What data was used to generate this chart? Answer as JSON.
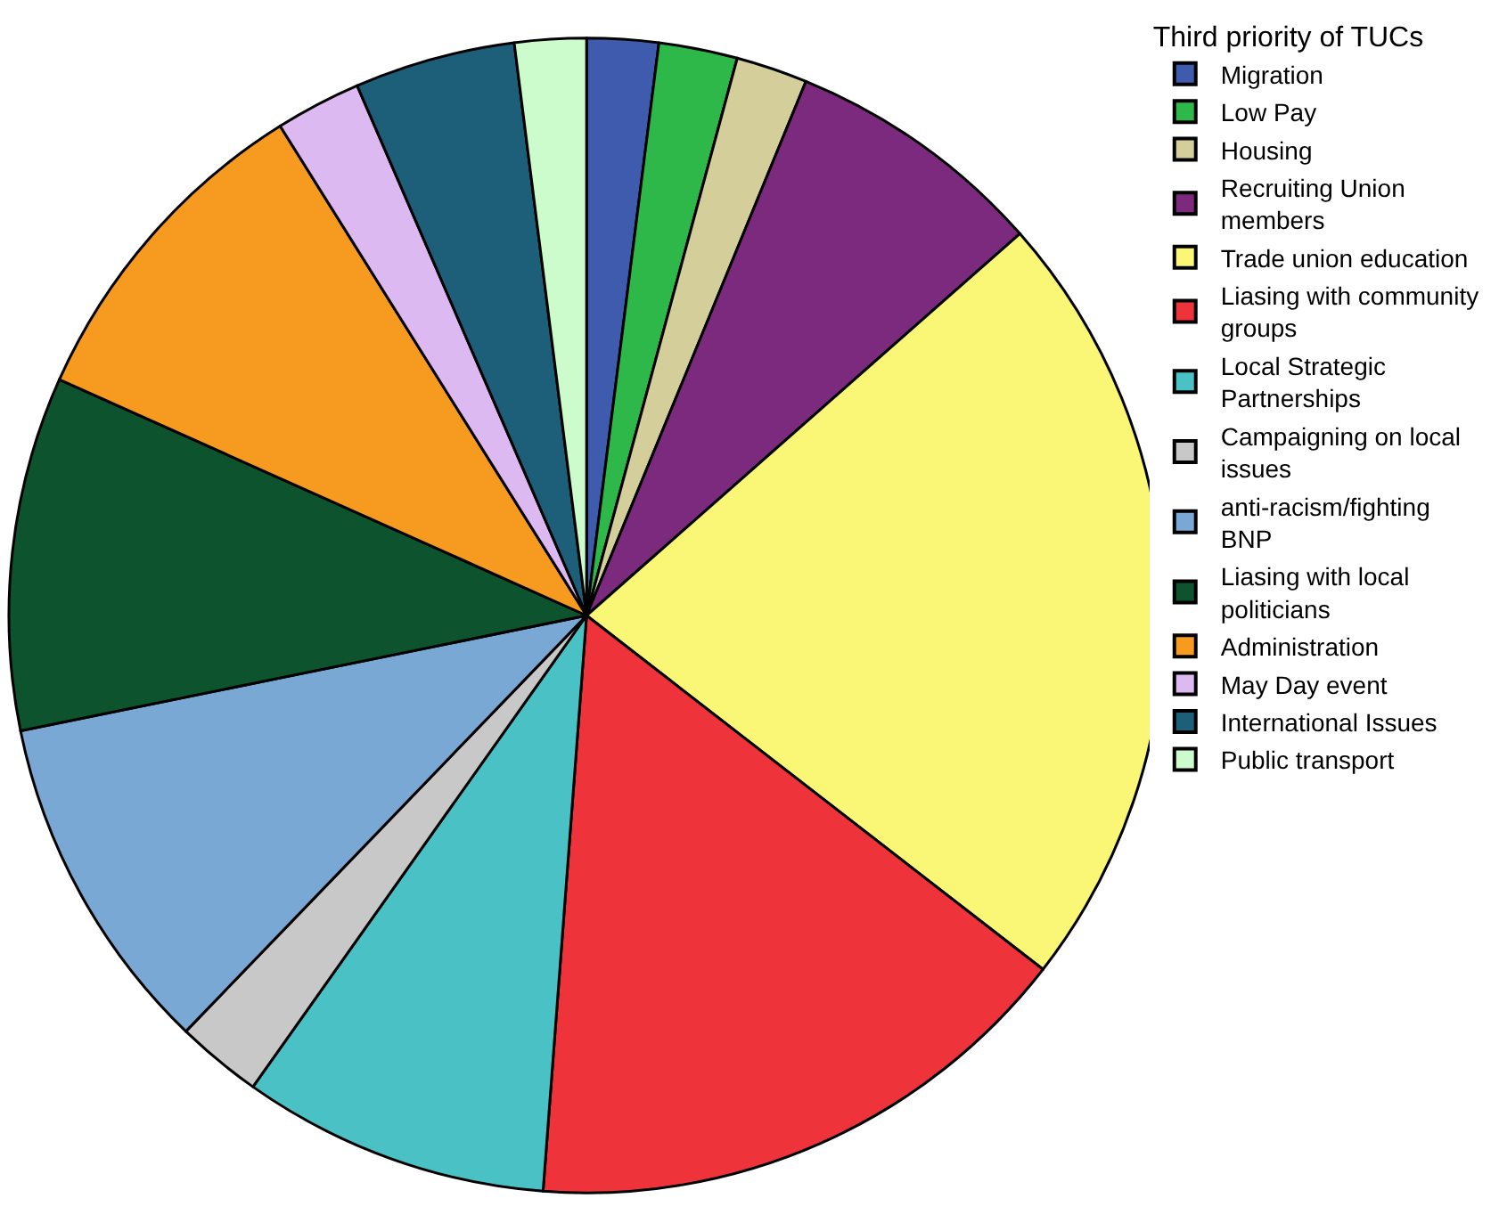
{
  "chart_data": {
    "type": "pie",
    "legend_title": "Third priority of TUCs",
    "legend": "top right",
    "categories": [
      "Migration",
      "Low Pay",
      "Housing",
      "Recruiting Union members",
      "Trade union education",
      "Liasing with community groups",
      "Local Strategic Partnerships",
      "Campaigning on local issues",
      "anti-racism/fighting BNP",
      "Liasing with local politicians",
      "Administration",
      "May Day event",
      "International Issues",
      "Public transport"
    ],
    "values": [
      2.0,
      2.2,
      2.0,
      7.3,
      22.0,
      15.7,
      8.6,
      2.4,
      9.6,
      9.9,
      9.4,
      2.4,
      4.5,
      2.0
    ],
    "colors": [
      "#3f5bad",
      "#2fb84a",
      "#d4cf9a",
      "#7b2a7e",
      "#f9f775",
      "#ef333b",
      "#4ac2c5",
      "#c8c8c8",
      "#7aa8d5",
      "#0c532e",
      "#f79a20",
      "#dcb9f0",
      "#1d5e78",
      "#ccfccc"
    ]
  }
}
